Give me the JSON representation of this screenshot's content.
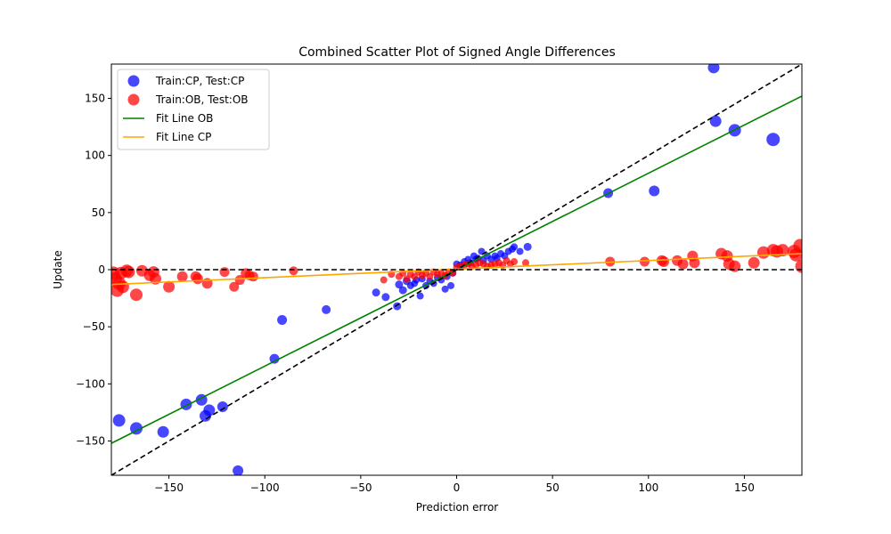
{
  "chart_data": {
    "type": "scatter",
    "title": "Combined Scatter Plot of Signed Angle Differences",
    "xlabel": "Prediction error",
    "ylabel": "Update",
    "xlim": [
      -180,
      180
    ],
    "ylim": [
      -180,
      180
    ],
    "xticks": [
      -150,
      -100,
      -50,
      0,
      50,
      100,
      150
    ],
    "yticks": [
      -150,
      -100,
      -50,
      0,
      50,
      100,
      150
    ],
    "xtick_labels": [
      "−150",
      "−100",
      "−50",
      "0",
      "50",
      "100",
      "150"
    ],
    "ytick_labels": [
      "−150",
      "−100",
      "−50",
      "0",
      "50",
      "100",
      "150"
    ],
    "grid": false,
    "legend_position": "top-left",
    "series": [
      {
        "name": "Train:CP, Test:CP",
        "kind": "scatter",
        "color": "#0000ff",
        "points": [
          [
            -176,
            -132
          ],
          [
            -167,
            -139
          ],
          [
            -153,
            -142
          ],
          [
            -141,
            -118
          ],
          [
            -133,
            -114
          ],
          [
            -131,
            -128
          ],
          [
            -129,
            -123
          ],
          [
            -122,
            -120
          ],
          [
            -114,
            -176
          ],
          [
            -95,
            -78
          ],
          [
            -91,
            -44
          ],
          [
            -68,
            -35
          ],
          [
            -42,
            -20
          ],
          [
            -37,
            -24
          ],
          [
            -31,
            -32
          ],
          [
            -30,
            -13
          ],
          [
            -28,
            -18
          ],
          [
            -26,
            -10
          ],
          [
            -24,
            -14
          ],
          [
            -22,
            -12
          ],
          [
            -21,
            -9
          ],
          [
            -19,
            -23
          ],
          [
            -18,
            -8
          ],
          [
            -16,
            -14
          ],
          [
            -14,
            -10
          ],
          [
            -12,
            -12
          ],
          [
            -10,
            -7
          ],
          [
            -8,
            -9
          ],
          [
            -6,
            -17
          ],
          [
            -5,
            -6
          ],
          [
            -3,
            -14
          ],
          [
            -2,
            -3
          ],
          [
            0,
            5
          ],
          [
            2,
            4
          ],
          [
            4,
            7
          ],
          [
            6,
            9
          ],
          [
            7,
            6
          ],
          [
            9,
            12
          ],
          [
            10,
            9
          ],
          [
            11,
            10
          ],
          [
            13,
            16
          ],
          [
            14,
            8
          ],
          [
            16,
            12
          ],
          [
            18,
            9
          ],
          [
            20,
            12
          ],
          [
            21,
            10
          ],
          [
            23,
            14
          ],
          [
            25,
            12
          ],
          [
            27,
            16
          ],
          [
            29,
            18
          ],
          [
            30,
            20
          ],
          [
            33,
            16
          ],
          [
            37,
            20
          ],
          [
            79,
            67
          ],
          [
            103,
            69
          ],
          [
            134,
            177
          ],
          [
            135,
            130
          ],
          [
            145,
            122
          ],
          [
            165,
            114
          ]
        ],
        "sizes": [
          14,
          14,
          13,
          13,
          13,
          13,
          13,
          12,
          12,
          11,
          11,
          10,
          9,
          9,
          9,
          9,
          9,
          9,
          8,
          8,
          8,
          8,
          8,
          8,
          8,
          8,
          8,
          8,
          8,
          8,
          8,
          8,
          8,
          8,
          8,
          8,
          8,
          8,
          8,
          8,
          8,
          8,
          8,
          8,
          8,
          8,
          8,
          8,
          8,
          8,
          8,
          8,
          9,
          11,
          12,
          13,
          13,
          14,
          15
        ]
      },
      {
        "name": "Train:OB, Test:OB",
        "kind": "scatter",
        "color": "#ff0000",
        "points": [
          [
            -179,
            -3
          ],
          [
            -178,
            -8
          ],
          [
            -177,
            -18
          ],
          [
            -176,
            -12
          ],
          [
            -175,
            -3
          ],
          [
            -174,
            -15
          ],
          [
            -172,
            -1
          ],
          [
            -171,
            -2
          ],
          [
            -167,
            -22
          ],
          [
            -164,
            -1
          ],
          [
            -160,
            -5
          ],
          [
            -158,
            -2
          ],
          [
            -157,
            -8
          ],
          [
            -150,
            -15
          ],
          [
            -143,
            -6
          ],
          [
            -136,
            -6
          ],
          [
            -135,
            -8
          ],
          [
            -130,
            -12
          ],
          [
            -121,
            -2
          ],
          [
            -116,
            -15
          ],
          [
            -113,
            -9
          ],
          [
            -110,
            -3
          ],
          [
            -108,
            -5
          ],
          [
            -106,
            -6
          ],
          [
            -85,
            -1
          ],
          [
            -38,
            -9
          ],
          [
            -34,
            -4
          ],
          [
            -30,
            -6
          ],
          [
            -28,
            -3
          ],
          [
            -26,
            -8
          ],
          [
            -24,
            -4
          ],
          [
            -22,
            -6
          ],
          [
            -20,
            -2
          ],
          [
            -18,
            -5
          ],
          [
            -16,
            -3
          ],
          [
            -14,
            -6
          ],
          [
            -12,
            -2
          ],
          [
            -10,
            -4
          ],
          [
            -8,
            -3
          ],
          [
            -6,
            -5
          ],
          [
            -4,
            -2
          ],
          [
            -2,
            -3
          ],
          [
            0,
            2
          ],
          [
            2,
            3
          ],
          [
            4,
            4
          ],
          [
            6,
            5
          ],
          [
            8,
            3
          ],
          [
            10,
            4
          ],
          [
            12,
            6
          ],
          [
            14,
            5
          ],
          [
            16,
            3
          ],
          [
            18,
            4
          ],
          [
            20,
            5
          ],
          [
            22,
            6
          ],
          [
            24,
            4
          ],
          [
            26,
            8
          ],
          [
            28,
            5
          ],
          [
            30,
            7
          ],
          [
            36,
            6
          ],
          [
            80,
            7
          ],
          [
            98,
            7
          ],
          [
            107,
            8
          ],
          [
            108,
            7
          ],
          [
            115,
            8
          ],
          [
            118,
            5
          ],
          [
            123,
            12
          ],
          [
            124,
            6
          ],
          [
            138,
            14
          ],
          [
            141,
            12
          ],
          [
            142,
            5
          ],
          [
            145,
            3
          ],
          [
            155,
            6
          ],
          [
            160,
            15
          ],
          [
            165,
            17
          ],
          [
            167,
            16
          ],
          [
            170,
            17
          ],
          [
            176,
            16
          ],
          [
            177,
            13
          ],
          [
            179,
            21
          ],
          [
            180,
            3
          ]
        ],
        "sizes": [
          15,
          15,
          15,
          15,
          14,
          14,
          14,
          14,
          14,
          13,
          13,
          13,
          13,
          13,
          12,
          12,
          12,
          12,
          11,
          11,
          11,
          11,
          11,
          11,
          10,
          8,
          8,
          8,
          8,
          8,
          8,
          8,
          8,
          8,
          8,
          8,
          8,
          8,
          8,
          8,
          8,
          8,
          8,
          8,
          8,
          8,
          8,
          8,
          8,
          8,
          8,
          8,
          8,
          8,
          8,
          8,
          8,
          8,
          8,
          11,
          11,
          12,
          12,
          12,
          12,
          12,
          12,
          13,
          13,
          13,
          13,
          13,
          14,
          14,
          14,
          14,
          15,
          15,
          15,
          15
        ]
      },
      {
        "name": "Fit Line OB",
        "kind": "line",
        "color": "#008000",
        "points": [
          [
            -180,
            -152
          ],
          [
            180,
            152
          ]
        ]
      },
      {
        "name": "Fit Line CP",
        "kind": "line",
        "color": "#ffa500",
        "points": [
          [
            -180,
            -13
          ],
          [
            180,
            14
          ]
        ]
      }
    ],
    "reference_lines": [
      {
        "style": "dashed",
        "color": "#000000",
        "points": [
          [
            -180,
            0
          ],
          [
            180,
            0
          ]
        ]
      },
      {
        "style": "dashed",
        "color": "#000000",
        "points": [
          [
            -180,
            -180
          ],
          [
            180,
            180
          ]
        ]
      }
    ]
  }
}
